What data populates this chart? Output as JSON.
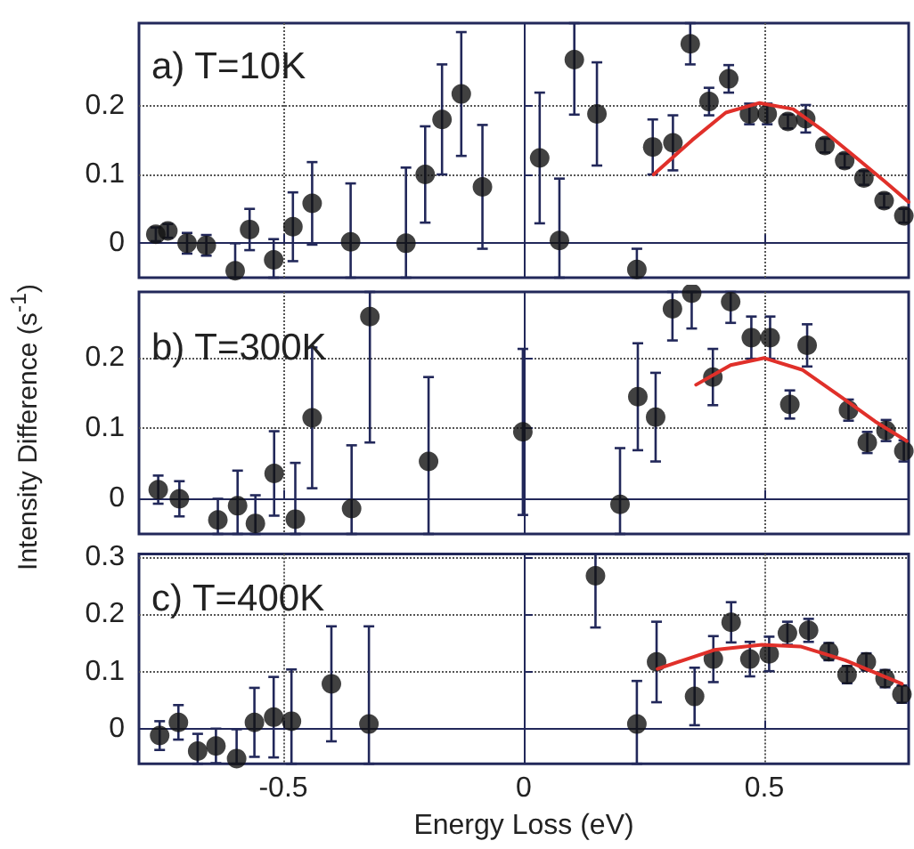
{
  "chart_data": [
    {
      "type": "scatter",
      "title": "a) T=10K",
      "xlim": [
        -0.8,
        0.8
      ],
      "xticks": [
        -0.5,
        0,
        0.5
      ],
      "ylim": [
        -0.05,
        0.32
      ],
      "yticks": [
        0,
        0.1,
        0.2
      ],
      "grid": true,
      "tick_labels": "y",
      "series": [
        {
          "color": "#111111",
          "x": [
            -0.765,
            -0.74,
            -0.7,
            -0.66,
            -0.6,
            -0.57,
            -0.52,
            -0.48,
            -0.44,
            -0.36,
            -0.245,
            -0.205,
            -0.17,
            -0.13,
            -0.086,
            0.033,
            0.074,
            0.105,
            0.152,
            0.235,
            0.268,
            0.31,
            0.346,
            0.385,
            0.426,
            0.469,
            0.506,
            0.549,
            0.586,
            0.626,
            0.667,
            0.707,
            0.749,
            0.79
          ],
          "values": [
            0.013,
            0.018,
            0.0,
            -0.003,
            -0.04,
            0.02,
            -0.024,
            0.024,
            0.058,
            0.002,
            0.0,
            0.1,
            0.18,
            0.217,
            0.082,
            0.124,
            0.004,
            0.267,
            0.188,
            -0.038,
            0.14,
            0.146,
            0.29,
            0.206,
            0.239,
            0.188,
            0.188,
            0.177,
            0.181,
            0.142,
            0.12,
            0.095,
            0.062,
            0.04
          ],
          "errors": [
            0.01,
            0.01,
            0.015,
            0.015,
            [
              -0.05,
              0.0
            ],
            0.03,
            [
              -0.05,
              0.006
            ],
            0.05,
            0.06,
            [
              -0.05,
              0.087
            ],
            [
              -0.05,
              0.11
            ],
            0.07,
            0.08,
            0.09,
            0.09,
            0.095,
            [
              -0.05,
              0.094
            ],
            [
              0.187,
              0.32
            ],
            0.075,
            [
              -0.05,
              -0.008
            ],
            0.04,
            0.04,
            [
              0.26,
              0.32
            ],
            0.02,
            0.02,
            0.015,
            0.015,
            0.01,
            0.02,
            0.01,
            0.01,
            0.01,
            0.01,
            0.01
          ]
        },
        {
          "type": "line",
          "color": "#e0302a",
          "line_style": "solid",
          "x": [
            0.27,
            0.35,
            0.42,
            0.49,
            0.56,
            0.62,
            0.69,
            0.75,
            0.8
          ],
          "values": [
            0.1,
            0.15,
            0.19,
            0.204,
            0.195,
            0.165,
            0.125,
            0.09,
            0.06
          ]
        }
      ]
    },
    {
      "type": "scatter",
      "title": "b) T=300K",
      "ylabel": "Intensity Difference (s$^{-1}$)",
      "xlim": [
        -0.8,
        0.8
      ],
      "xticks": [
        -0.5,
        0,
        0.5
      ],
      "ylim": [
        -0.05,
        0.294
      ],
      "yticks": [
        0,
        0.1,
        0.2
      ],
      "grid": true,
      "tick_labels": "y",
      "series": [
        {
          "color": "#111111",
          "x": [
            -0.76,
            -0.716,
            -0.636,
            -0.595,
            -0.558,
            -0.519,
            -0.475,
            -0.44,
            -0.358,
            -0.32,
            -0.198,
            -0.002,
            0.2,
            0.237,
            0.274,
            0.309,
            0.349,
            0.393,
            0.43,
            0.473,
            0.512,
            0.553,
            0.589,
            0.675,
            0.714,
            0.753,
            0.79
          ],
          "values": [
            0.013,
            0.0,
            -0.03,
            -0.01,
            -0.035,
            0.036,
            -0.029,
            0.115,
            -0.014,
            0.259,
            0.053,
            0.095,
            -0.008,
            0.145,
            0.116,
            0.27,
            0.292,
            0.173,
            0.28,
            0.229,
            0.229,
            0.134,
            0.218,
            0.126,
            0.08,
            0.097,
            0.068
          ],
          "errors": [
            0.02,
            0.025,
            [
              -0.05,
              0.0
            ],
            [
              -0.05,
              0.04
            ],
            [
              -0.05,
              0.005
            ],
            0.06,
            [
              -0.05,
              0.051
            ],
            0.1,
            [
              -0.05,
              0.076
            ],
            [
              0.08,
              0.294
            ],
            [
              -0.05,
              0.173
            ],
            0.118,
            [
              -0.05,
              0.072
            ],
            0.076,
            0.063,
            [
              0.225,
              0.294
            ],
            [
              0.242,
              0.294
            ],
            0.04,
            [
              0.25,
              0.294
            ],
            0.03,
            0.03,
            0.02,
            0.03,
            0.015,
            0.015,
            0.015,
            0.015
          ]
        },
        {
          "type": "line",
          "color": "#e0302a",
          "line_style": "solid",
          "x": [
            0.358,
            0.43,
            0.5,
            0.58,
            0.667,
            0.73,
            0.796
          ],
          "values": [
            0.162,
            0.19,
            0.2,
            0.183,
            0.141,
            0.11,
            0.082
          ]
        }
      ]
    },
    {
      "type": "scatter",
      "title": "c) T=400K",
      "xlabel": "Energy Loss (eV)",
      "xlim": [
        -0.8,
        0.8
      ],
      "xticks": [
        -0.5,
        0,
        0.5
      ],
      "ylim": [
        -0.06,
        0.305
      ],
      "yticks": [
        0,
        0.1,
        0.2,
        0.3
      ],
      "grid": true,
      "series": [
        {
          "color": "#111111",
          "x": [
            -0.757,
            -0.718,
            -0.678,
            -0.64,
            -0.597,
            -0.56,
            -0.52,
            -0.483,
            -0.4,
            -0.322,
            0.149,
            0.235,
            0.276,
            0.355,
            0.394,
            0.431,
            0.47,
            0.51,
            0.548,
            0.592,
            0.634,
            0.672,
            0.712,
            0.751,
            0.786
          ],
          "values": [
            -0.011,
            0.012,
            -0.038,
            -0.029,
            -0.051,
            0.012,
            0.021,
            0.014,
            0.079,
            0.009,
            0.267,
            0.009,
            0.117,
            0.057,
            0.122,
            0.186,
            0.122,
            0.131,
            0.167,
            0.172,
            0.135,
            0.095,
            0.117,
            0.088,
            0.061
          ],
          "errors": [
            0.025,
            0.03,
            [
              -0.06,
              -0.008
            ],
            0.03,
            [
              -0.06,
              0.0
            ],
            0.06,
            0.07,
            [
              -0.06,
              0.104
            ],
            0.1,
            [
              -0.06,
              0.179
            ],
            [
              0.177,
              0.305
            ],
            [
              -0.06,
              0.084
            ],
            0.07,
            0.05,
            0.04,
            0.035,
            0.03,
            0.03,
            0.02,
            0.02,
            0.015,
            0.015,
            0.015,
            0.015,
            0.015
          ]
        },
        {
          "type": "line",
          "color": "#e0302a",
          "line_style": "solid",
          "x": [
            0.278,
            0.396,
            0.495,
            0.575,
            0.668,
            0.786
          ],
          "values": [
            0.105,
            0.138,
            0.147,
            0.144,
            0.12,
            0.079
          ]
        }
      ]
    }
  ]
}
